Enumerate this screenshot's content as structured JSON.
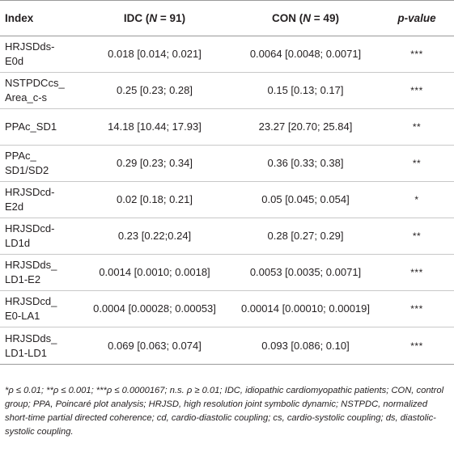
{
  "table": {
    "headers": {
      "index": "Index",
      "idc_prefix": "IDC (",
      "idc_n": "N",
      "idc_suffix": " = 91)",
      "con_prefix": "CON (",
      "con_n": "N",
      "con_suffix": " = 49)",
      "p_value": "p-value"
    },
    "rows": [
      {
        "index_line1": "HRJSDds-",
        "index_line2": "E0d",
        "idc": "0.018 [0.014; 0.021]",
        "con": "0.0064 [0.0048; 0.0071]",
        "p": "***"
      },
      {
        "index_line1": "NSTPDCcs_",
        "index_line2": "Area_c-s",
        "idc": "0.25 [0.23; 0.28]",
        "con": "0.15 [0.13; 0.17]",
        "p": "***"
      },
      {
        "index_line1": "PPAc_SD1",
        "index_line2": "",
        "idc": "14.18 [10.44; 17.93]",
        "con": "23.27 [20.70; 25.84]",
        "p": "**"
      },
      {
        "index_line1": "PPAc_",
        "index_line2": "SD1/SD2",
        "idc": "0.29 [0.23; 0.34]",
        "con": "0.36 [0.33; 0.38]",
        "p": "**"
      },
      {
        "index_line1": "HRJSDcd-",
        "index_line2": "E2d",
        "idc": "0.02 [0.18; 0.21]",
        "con": "0.05 [0.045; 0.054]",
        "p": "*"
      },
      {
        "index_line1": "HRJSDcd-",
        "index_line2": "LD1d",
        "idc": "0.23 [0.22;0.24]",
        "con": "0.28 [0.27; 0.29]",
        "p": "**"
      },
      {
        "index_line1": "HRJSDds_",
        "index_line2": "LD1-E2",
        "idc": "0.0014 [0.0010; 0.0018]",
        "con": "0.0053 [0.0035; 0.0071]",
        "p": "***"
      },
      {
        "index_line1": "HRJSDcd_",
        "index_line2": "E0-LA1",
        "idc": "0.0004 [0.00028; 0.00053]",
        "con": "0.00014 [0.00010; 0.00019]",
        "p": "***"
      },
      {
        "index_line1": "HRJSDds_",
        "index_line2": "LD1-LD1",
        "idc": "0.069 [0.063; 0.074]",
        "con": "0.093 [0.086; 0.10]",
        "p": "***"
      }
    ]
  },
  "footnote": "*ρ ≤ 0.01; **ρ ≤ 0.001; ***ρ ≤ 0.0000167; n.s. ρ ≥ 0.01; IDC, idiopathic cardiomyopathic patients; CON, control group; PPA, Poincaré plot analysis; HRJSD, high resolution joint symbolic dynamic; NSTPDC, normalized short-time partial directed coherence; cd, cardio-diastolic coupling; cs, cardio-systolic coupling; ds, diastolic-systolic coupling."
}
